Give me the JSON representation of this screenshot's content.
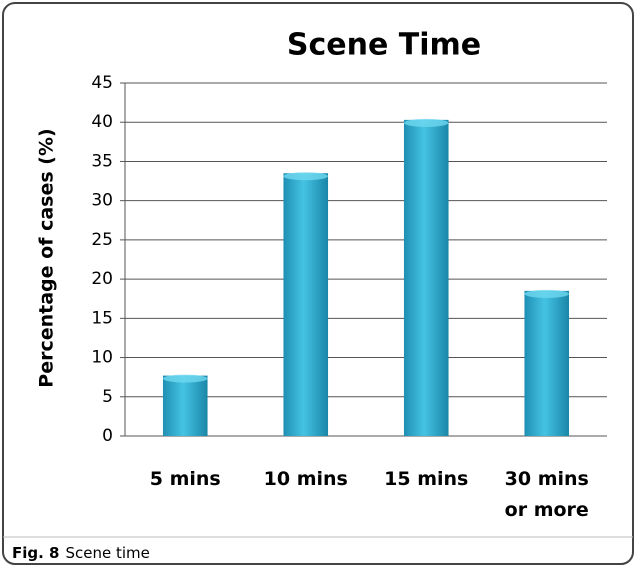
{
  "chart_data": {
    "type": "bar",
    "title": "Scene Time",
    "ylabel": "Percentage of cases  (%)",
    "categories": [
      "5 mins",
      "10 mins",
      "15 mins",
      "30 mins\nor more"
    ],
    "values": [
      7.7,
      33.5,
      40.3,
      18.5
    ],
    "color": "#2aa9cc",
    "ylim": [
      0,
      45
    ],
    "yticks": [
      0,
      5,
      10,
      15,
      20,
      25,
      30,
      35,
      40,
      45
    ],
    "grid": true
  },
  "caption": {
    "label": "Fig. 8",
    "text": "Scene time"
  }
}
